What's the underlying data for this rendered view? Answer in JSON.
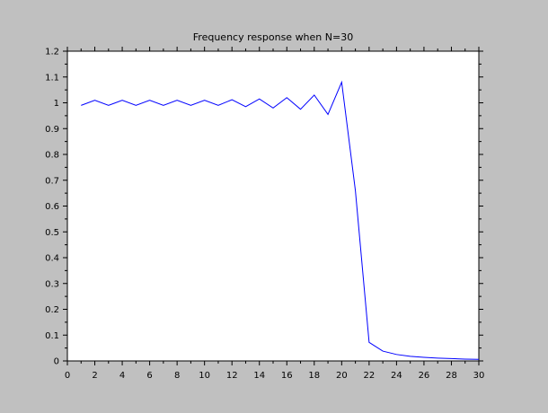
{
  "chart_data": {
    "type": "line",
    "title": "Frequency response when N=30",
    "xlabel": "",
    "ylabel": "",
    "xlim": [
      0,
      30
    ],
    "ylim": [
      0,
      1.2
    ],
    "x_ticks": [
      0,
      2,
      4,
      6,
      8,
      10,
      12,
      14,
      16,
      18,
      20,
      22,
      24,
      26,
      28,
      30
    ],
    "y_ticks": [
      0,
      0.1,
      0.2,
      0.3,
      0.4,
      0.5,
      0.6,
      0.7,
      0.8,
      0.9,
      1,
      1.1,
      1.2
    ],
    "x_tick_labels": [
      "0",
      "2",
      "4",
      "6",
      "8",
      "10",
      "12",
      "14",
      "16",
      "18",
      "20",
      "22",
      "24",
      "26",
      "28",
      "30"
    ],
    "y_tick_labels": [
      "0",
      "0.1",
      "0.2",
      "0.3",
      "0.4",
      "0.5",
      "0.6",
      "0.7",
      "0.8",
      "0.9",
      "1",
      "1.1",
      "1.2"
    ],
    "grid": false,
    "colors": {
      "background": "#c0c0c0",
      "plot_area": "#ffffff",
      "line": "#0000ff"
    },
    "series": [
      {
        "x": [
          1,
          2,
          3,
          4,
          5,
          6,
          7,
          8,
          9,
          10,
          11,
          12,
          13,
          14,
          15,
          16,
          17,
          18,
          19,
          20,
          21,
          22,
          23,
          24,
          25,
          26,
          27,
          28,
          29,
          30
        ],
        "y": [
          0.99,
          1.01,
          0.99,
          1.01,
          0.99,
          1.01,
          0.99,
          1.01,
          0.99,
          1.01,
          0.99,
          1.012,
          0.985,
          1.015,
          0.98,
          1.02,
          0.975,
          1.03,
          0.955,
          1.08,
          0.66,
          0.072,
          0.038,
          0.025,
          0.018,
          0.014,
          0.011,
          0.009,
          0.007,
          0.006
        ]
      }
    ]
  }
}
